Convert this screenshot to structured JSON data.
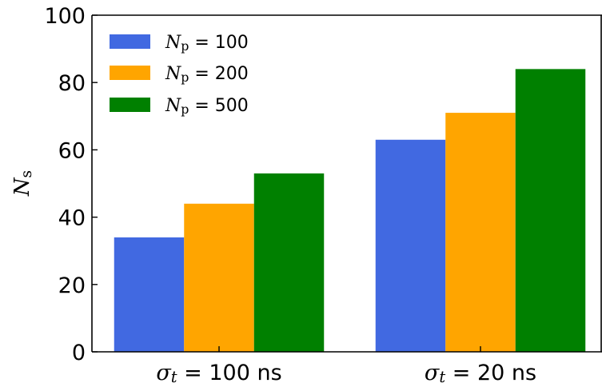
{
  "chart_data": {
    "type": "bar",
    "categories": [
      {
        "symbol": "σ",
        "subscript": "t",
        "text": " = 100 ns"
      },
      {
        "symbol": "σ",
        "subscript": "t",
        "text": " = 20 ns"
      }
    ],
    "series": [
      {
        "name": {
          "symbol": "N",
          "subscript": "p",
          "text": " = 100"
        },
        "color": "#4169e1",
        "values": [
          34,
          63
        ]
      },
      {
        "name": {
          "symbol": "N",
          "subscript": "p",
          "text": " = 200"
        },
        "color": "#ffa500",
        "values": [
          44,
          71
        ]
      },
      {
        "name": {
          "symbol": "N",
          "subscript": "p",
          "text": " = 500"
        },
        "color": "#008000",
        "values": [
          53,
          84
        ]
      }
    ],
    "ylabel": {
      "symbol": "N",
      "subscript": "s"
    },
    "ylim": [
      0,
      100
    ],
    "yticks": [
      "0",
      "20",
      "40",
      "60",
      "80",
      "100"
    ],
    "legend": "top-left",
    "grid": false
  }
}
